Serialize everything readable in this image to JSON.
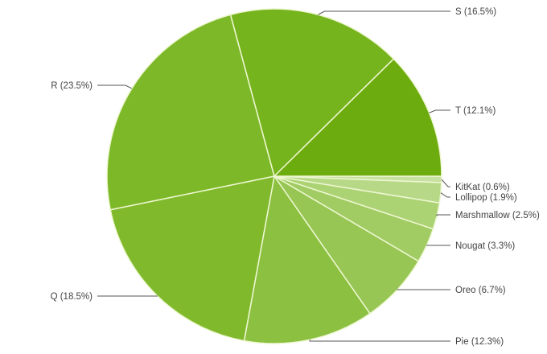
{
  "chart_data": {
    "type": "pie",
    "title": "",
    "start_angle": "3 o'clock, clockwise",
    "legend": "labeled slices with leader lines",
    "slices": [
      {
        "name": "KitKat",
        "value": 0.6,
        "label": "KitKat (0.6%)",
        "color": "#c6e1a0"
      },
      {
        "name": "Lollipop",
        "value": 1.9,
        "label": "Lollipop (1.9%)",
        "color": "#b7d987"
      },
      {
        "name": "Marshmallow",
        "value": 2.5,
        "label": "Marshmallow (2.5%)",
        "color": "#abd273"
      },
      {
        "name": "Nougat",
        "value": 3.3,
        "label": "Nougat (3.3%)",
        "color": "#a1cc63"
      },
      {
        "name": "Oreo",
        "value": 6.7,
        "label": "Oreo (6.7%)",
        "color": "#97c654"
      },
      {
        "name": "Pie",
        "value": 12.3,
        "label": "Pie (12.3%)",
        "color": "#8cc040"
      },
      {
        "name": "Q",
        "value": 18.5,
        "label": "Q (18.5%)",
        "color": "#80ba2c"
      },
      {
        "name": "R",
        "value": 23.5,
        "label": "R (23.5%)",
        "color": "#7db829"
      },
      {
        "name": "S",
        "value": 16.5,
        "label": "S (16.5%)",
        "color": "#76b41d"
      },
      {
        "name": "T",
        "value": 12.1,
        "label": "T (12.1%)",
        "color": "#6dac0e"
      }
    ],
    "separator_color": "#eef7d2",
    "leader_color": "#555555"
  }
}
